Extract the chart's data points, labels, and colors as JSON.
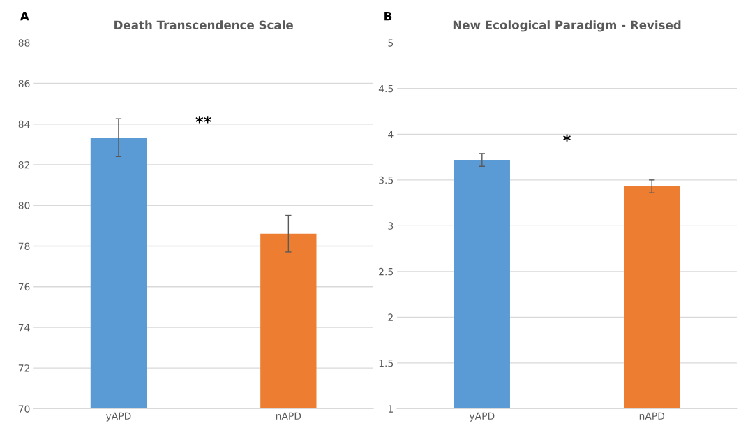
{
  "chart_data": [
    {
      "type": "bar",
      "title": "Death Transcendence Scale",
      "categories": [
        "yAPD",
        "nAPD"
      ],
      "values": [
        83.33,
        78.61
      ],
      "colors": [
        "#5b9bd5",
        "#ed7d31"
      ],
      "errors": [
        0.93,
        0.9
      ],
      "ylim": [
        70,
        88
      ],
      "yticks": [
        70,
        72,
        74,
        76,
        78,
        80,
        82,
        84,
        86,
        88
      ],
      "grid": "y",
      "annotations": [
        "A",
        "**"
      ]
    },
    {
      "type": "bar",
      "title": "New Ecological Paradigm - Revised",
      "categories": [
        "yAPD",
        "nAPD"
      ],
      "values": [
        3.72,
        3.43
      ],
      "colors": [
        "#5b9bd5",
        "#ed7d31"
      ],
      "errors": [
        0.07,
        0.07
      ],
      "ylim": [
        1,
        5
      ],
      "yticks": [
        1,
        1.5,
        2,
        2.5,
        3,
        3.5,
        4,
        4.5,
        5
      ],
      "grid": "y",
      "annotations": [
        "B",
        "*"
      ]
    }
  ]
}
